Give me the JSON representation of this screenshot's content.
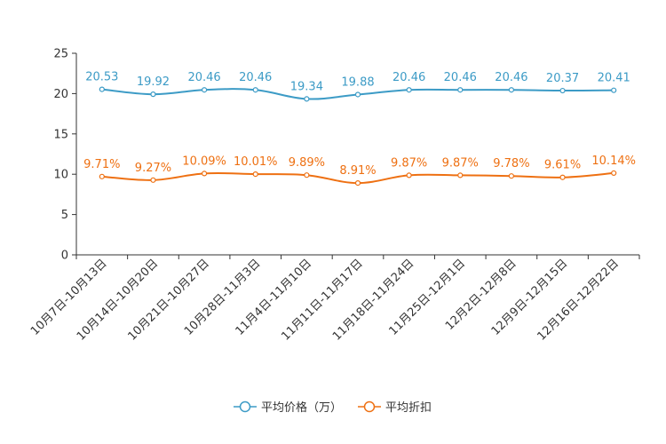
{
  "chart_data": {
    "type": "line",
    "categories": [
      "10月7日-10月13日",
      "10月14日-10月20日",
      "10月21日-10月27日",
      "10月28日-11月3日",
      "11月4日-11月10日",
      "11月11日-11月17日",
      "11月18日-11月24日",
      "11月25日-12月1日",
      "12月2日-12月8日",
      "12月9日-12月15日",
      "12月16日-12月22日"
    ],
    "series": [
      {
        "name": "平均价格（万）",
        "color": "#3c9bc6",
        "values": [
          20.53,
          19.92,
          20.46,
          20.46,
          19.34,
          19.88,
          20.46,
          20.46,
          20.46,
          20.37,
          20.41
        ],
        "labels": [
          "20.53",
          "19.92",
          "20.46",
          "20.46",
          "19.34",
          "19.88",
          "20.46",
          "20.46",
          "20.46",
          "20.37",
          "20.41"
        ]
      },
      {
        "name": "平均折扣",
        "color": "#ee7012",
        "values": [
          9.71,
          9.27,
          10.09,
          10.01,
          9.89,
          8.91,
          9.87,
          9.87,
          9.78,
          9.61,
          10.14
        ],
        "labels": [
          "9.71%",
          "9.27%",
          "10.09%",
          "10.01%",
          "9.89%",
          "8.91%",
          "9.87%",
          "9.87%",
          "9.78%",
          "9.61%",
          "10.14%"
        ]
      }
    ],
    "y_ticks": [
      "0",
      "5",
      "10",
      "15",
      "20",
      "25"
    ],
    "ylim": [
      0,
      25
    ],
    "title": "",
    "xlabel": "",
    "ylabel": "",
    "legend_position": "bottom-center",
    "grid": false
  }
}
